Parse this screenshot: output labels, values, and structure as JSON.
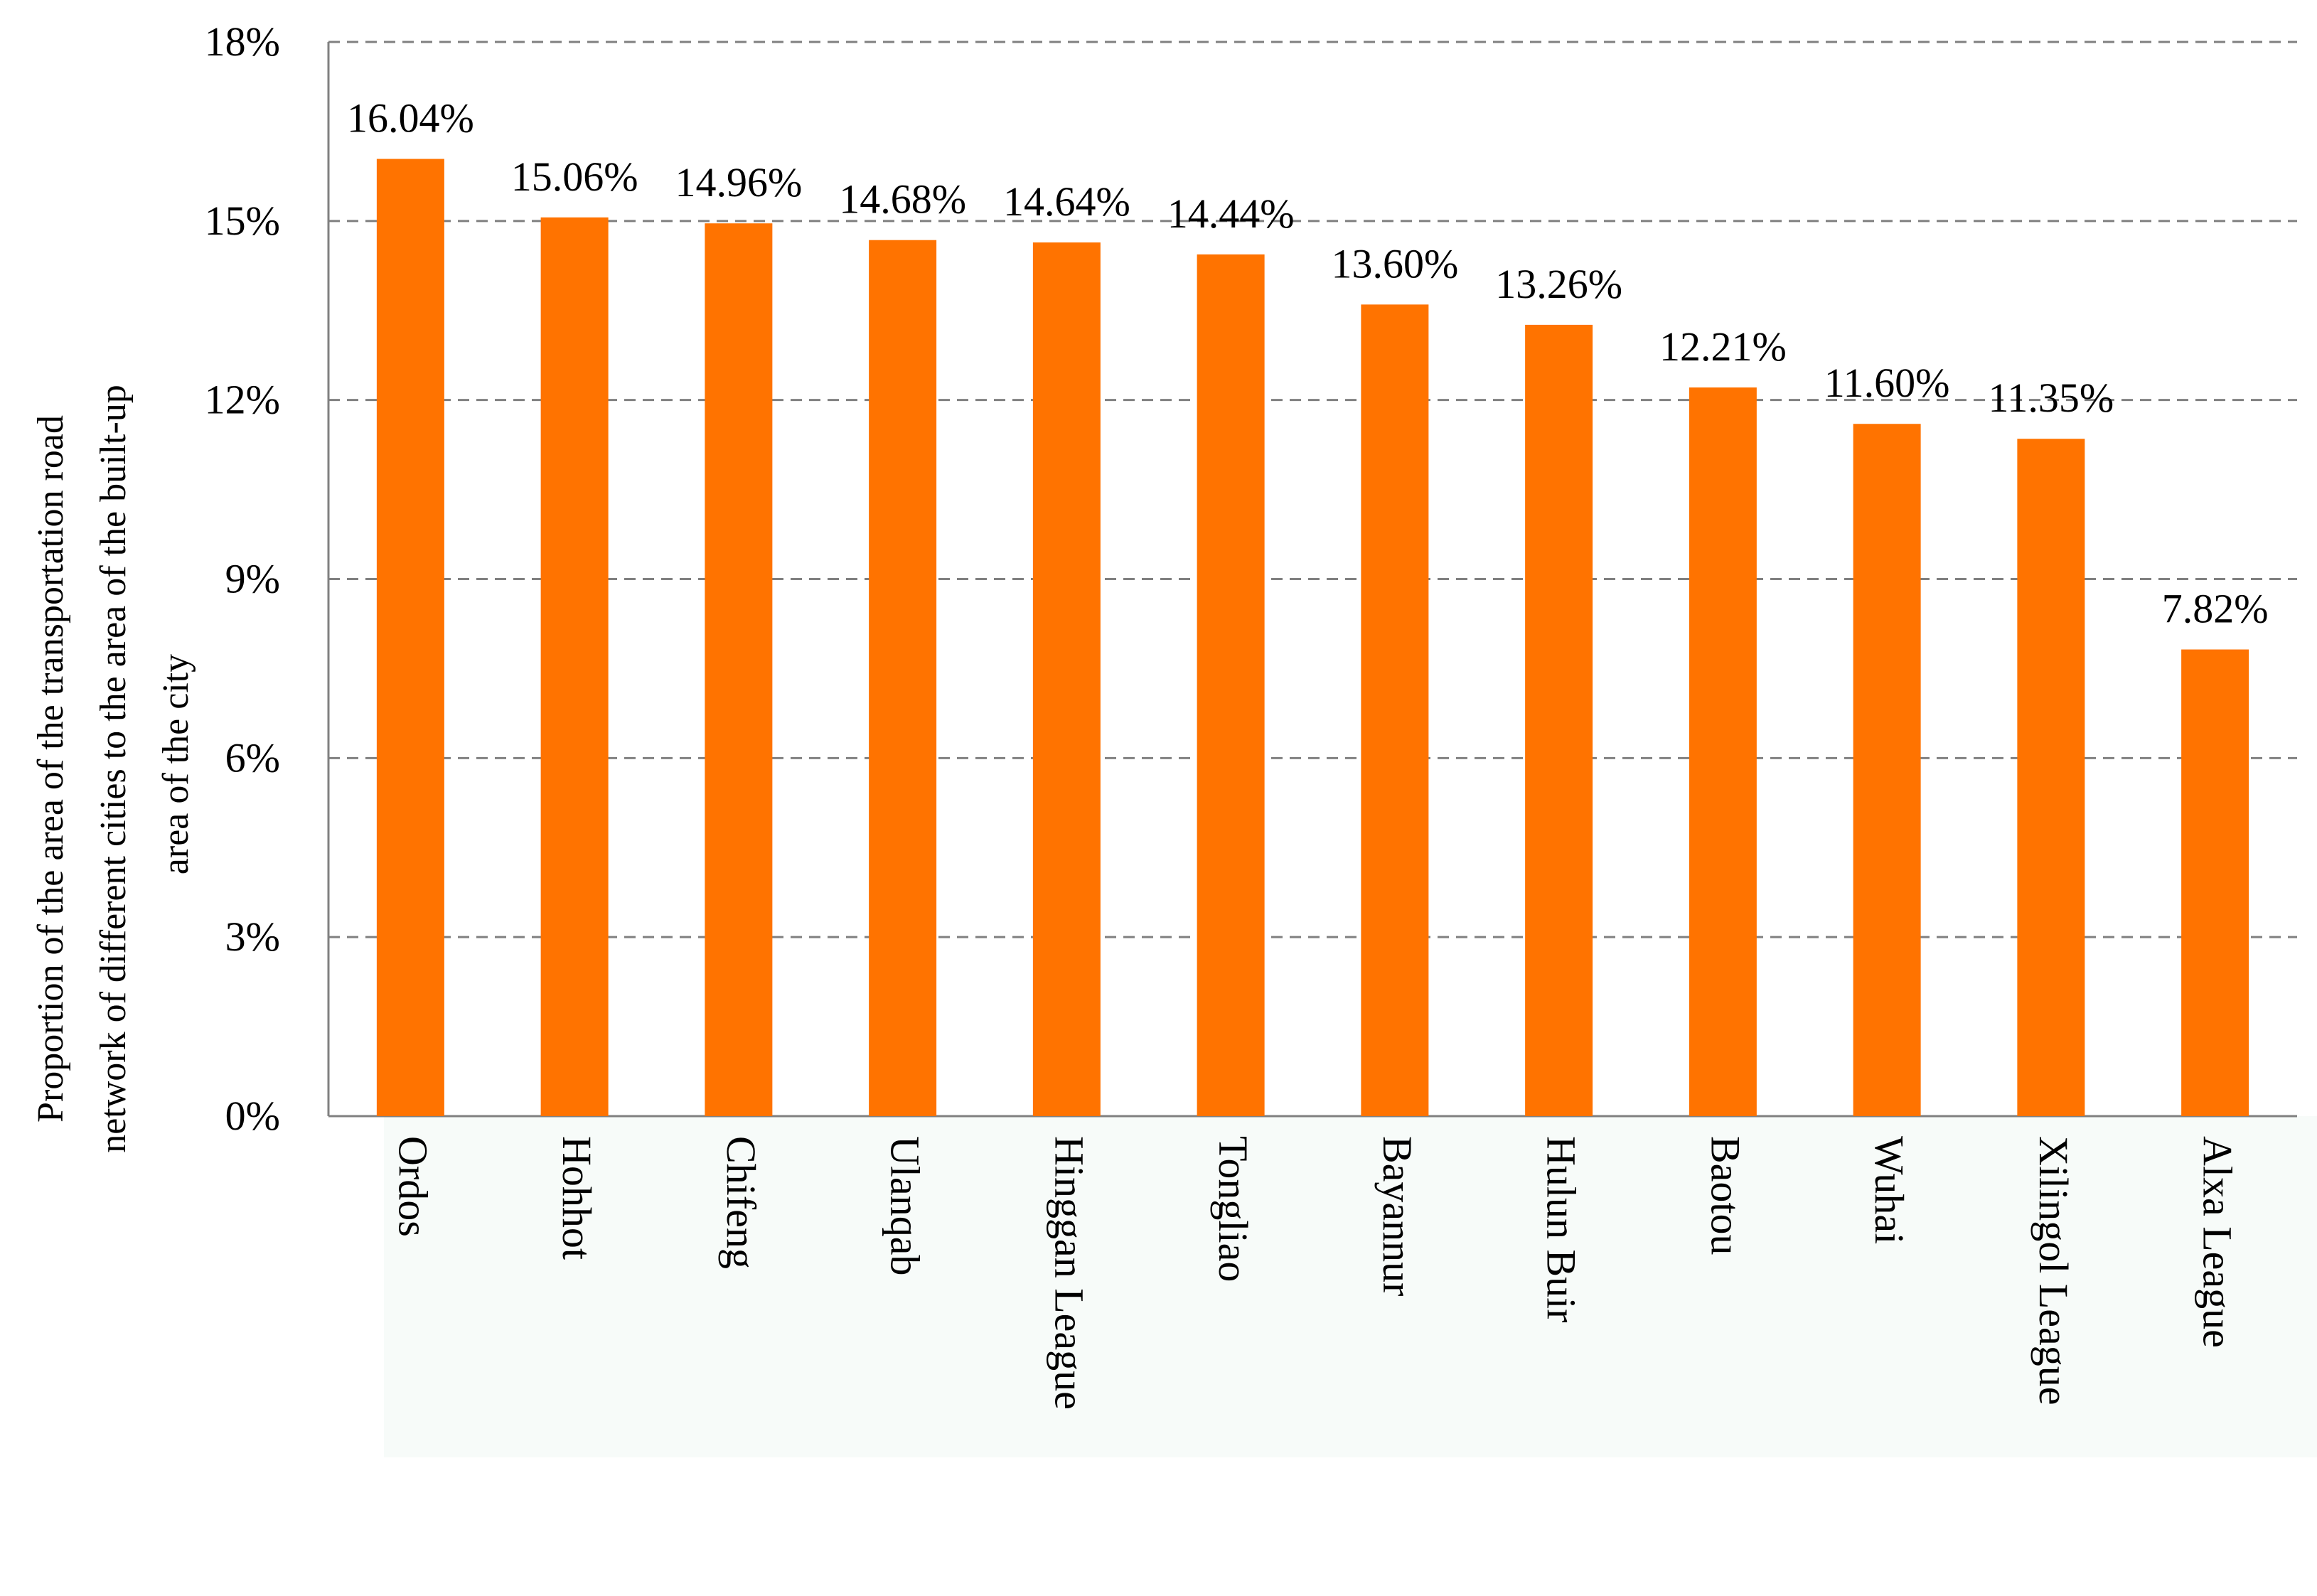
{
  "chart_data": {
    "type": "bar",
    "ylabel_lines": [
      "Proportion of the area of the transportation road",
      "network of different cities to the area of the built-up",
      "area of the city"
    ],
    "categories": [
      "Ordos",
      "Hohhot",
      "Chifeng",
      "Ulanqab",
      "Hinggan League",
      "Tongliao",
      "Bayannur",
      "Hulun Buir",
      "Baotou",
      "Wuhai",
      "Xilingol League",
      "Alxa League"
    ],
    "values": [
      16.04,
      15.06,
      14.96,
      14.68,
      14.64,
      14.44,
      13.6,
      13.26,
      12.21,
      11.6,
      11.35,
      7.82
    ],
    "value_labels": [
      "16.04%",
      "15.06%",
      "14.96%",
      "14.68%",
      "14.64%",
      "14.44%",
      "13.60%",
      "13.26%",
      "12.21%",
      "11.60%",
      "11.35%",
      "7.82%"
    ],
    "ylim": [
      0,
      18
    ],
    "yticks": [
      0,
      3,
      6,
      9,
      12,
      15,
      18
    ],
    "ytick_labels": [
      "0%",
      "3%",
      "6%",
      "9%",
      "12%",
      "15%",
      "18%"
    ],
    "grid": "horizontal dashed",
    "legend": "none",
    "colors": {
      "bar": "#FF7300",
      "grid": "#808080",
      "axis": "#808080",
      "text": "#000000",
      "category_band": "#F7FBF9"
    }
  }
}
